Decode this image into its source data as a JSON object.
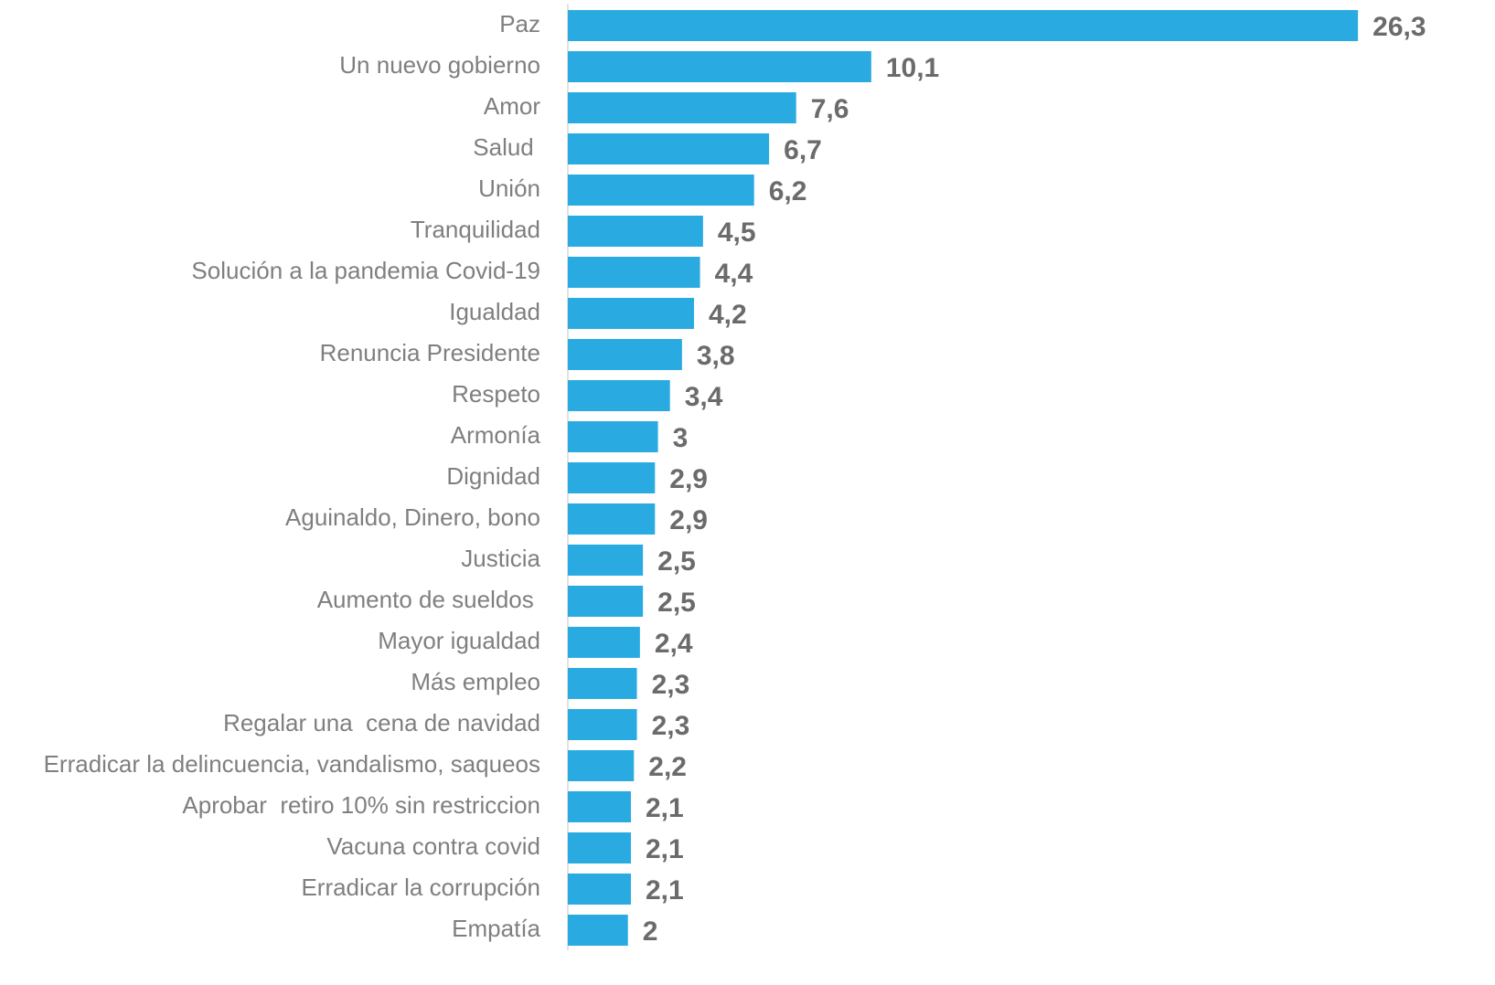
{
  "chart_data": {
    "type": "bar",
    "orientation": "horizontal",
    "color": "#29abe2",
    "categories": [
      "Paz",
      "Un nuevo gobierno",
      "Amor",
      "Salud ",
      "Unión",
      "Tranquilidad",
      "Solución a la pandemia Covid-19",
      "Igualdad",
      "Renuncia Presidente",
      "Respeto",
      "Armonía",
      "Dignidad",
      "Aguinaldo, Dinero, bono",
      "Justicia",
      "Aumento de sueldos ",
      "Mayor igualdad",
      "Más empleo",
      "Regalar una  cena de navidad",
      "Erradicar la delincuencia, vandalismo, saqueos",
      "Aprobar  retiro 10% sin restriccion",
      "Vacuna contra covid",
      "Erradicar la corrupción",
      "Empatía"
    ],
    "values": [
      26.3,
      10.1,
      7.6,
      6.7,
      6.2,
      4.5,
      4.4,
      4.2,
      3.8,
      3.4,
      3,
      2.9,
      2.9,
      2.5,
      2.5,
      2.4,
      2.3,
      2.3,
      2.2,
      2.1,
      2.1,
      2.1,
      2
    ],
    "value_labels": [
      "26,3",
      "10,1",
      "7,6",
      "6,7",
      "6,2",
      "4,5",
      "4,4",
      "4,2",
      "3,8",
      "3,4",
      "3",
      "2,9",
      "2,9",
      "2,5",
      "2,5",
      "2,4",
      "2,3",
      "2,3",
      "2,2",
      "2,1",
      "2,1",
      "2,1",
      "2"
    ],
    "xlim": [
      0,
      28
    ]
  }
}
